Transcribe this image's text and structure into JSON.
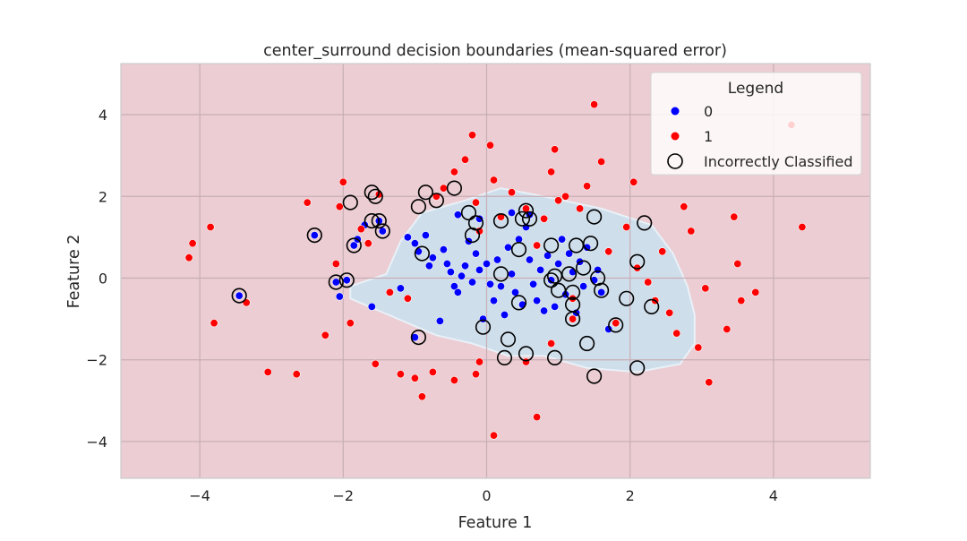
{
  "chart_data": {
    "type": "scatter",
    "title": "center_surround decision boundaries (mean-squared error)",
    "xlabel": "Feature 1",
    "ylabel": "Feature 2",
    "xlim": [
      -5.1,
      5.35
    ],
    "ylim": [
      -4.9,
      5.25
    ],
    "xticks": [
      -4,
      -2,
      0,
      2,
      4
    ],
    "yticks": [
      -4,
      -2,
      0,
      2,
      4
    ],
    "xtick_labels": [
      "−4",
      "−2",
      "0",
      "2",
      "4"
    ],
    "ytick_labels": [
      "−4",
      "−2",
      "0",
      "2",
      "4"
    ],
    "grid": true,
    "background": {
      "class_1_region_color": "#ebcdd3",
      "class_0_region_color": "#cfdeeb",
      "grid_color": "#c7aeb5"
    },
    "decision_region_class0": [
      [
        -1.9,
        -0.2
      ],
      [
        -1.4,
        0.1
      ],
      [
        -1.2,
        0.9
      ],
      [
        -0.9,
        1.6
      ],
      [
        -0.3,
        1.9
      ],
      [
        0.2,
        2.2
      ],
      [
        0.8,
        2.0
      ],
      [
        1.6,
        1.7
      ],
      [
        2.3,
        1.3
      ],
      [
        2.6,
        0.6
      ],
      [
        2.8,
        -0.2
      ],
      [
        2.9,
        -0.9
      ],
      [
        2.9,
        -1.6
      ],
      [
        2.7,
        -2.1
      ],
      [
        2.1,
        -2.3
      ],
      [
        1.4,
        -2.2
      ],
      [
        0.8,
        -1.9
      ],
      [
        0.3,
        -1.9
      ],
      [
        -0.2,
        -1.6
      ],
      [
        -0.7,
        -1.4
      ],
      [
        -1.1,
        -1.1
      ],
      [
        -1.5,
        -0.8
      ],
      [
        -1.9,
        -0.5
      ]
    ],
    "legend": {
      "title": "Legend",
      "position": "top-right",
      "entries": [
        "0",
        "1",
        "Incorrectly Classified"
      ]
    },
    "colors": {
      "0": "#0000ff",
      "1": "#ff0000",
      "misclassified_ring": "#000000"
    },
    "series": [
      {
        "name": "0",
        "points": [
          [
            -3.45,
            -0.43
          ],
          [
            -2.4,
            1.05
          ],
          [
            -2.1,
            -0.1
          ],
          [
            -2.05,
            -0.45
          ],
          [
            -1.95,
            -0.05
          ],
          [
            -1.85,
            0.8
          ],
          [
            -1.8,
            0.95
          ],
          [
            -1.6,
            -0.7
          ],
          [
            -1.5,
            1.4
          ],
          [
            -1.45,
            1.15
          ],
          [
            -1.2,
            -0.25
          ],
          [
            -1.0,
            -1.45
          ],
          [
            -1.0,
            0.85
          ],
          [
            -0.95,
            0.65
          ],
          [
            -0.85,
            1.05
          ],
          [
            -0.8,
            0.3
          ],
          [
            -0.75,
            0.5
          ],
          [
            -0.65,
            -1.05
          ],
          [
            -0.6,
            0.7
          ],
          [
            -0.55,
            0.35
          ],
          [
            -0.5,
            0.15
          ],
          [
            -0.45,
            -0.2
          ],
          [
            -0.4,
            -0.35
          ],
          [
            -0.35,
            0.05
          ],
          [
            -0.3,
            0.3
          ],
          [
            -0.25,
            0.9
          ],
          [
            -0.2,
            -0.1
          ],
          [
            -0.15,
            0.6
          ],
          [
            -0.1,
            0.2
          ],
          [
            -0.05,
            -1.0
          ],
          [
            0.0,
            0.35
          ],
          [
            0.05,
            -0.15
          ],
          [
            0.1,
            -0.55
          ],
          [
            0.15,
            0.45
          ],
          [
            0.2,
            -0.2
          ],
          [
            0.25,
            -0.9
          ],
          [
            0.3,
            0.75
          ],
          [
            0.35,
            0.1
          ],
          [
            0.4,
            -0.35
          ],
          [
            0.45,
            0.95
          ],
          [
            0.5,
            -0.65
          ],
          [
            0.55,
            1.25
          ],
          [
            0.6,
            0.45
          ],
          [
            0.65,
            -0.15
          ],
          [
            0.7,
            -0.55
          ],
          [
            0.75,
            0.2
          ],
          [
            0.8,
            -0.8
          ],
          [
            0.85,
            0.55
          ],
          [
            0.9,
            -0.05
          ],
          [
            0.95,
            -0.7
          ],
          [
            1.0,
            0.35
          ],
          [
            1.05,
            0.95
          ],
          [
            1.1,
            -0.4
          ],
          [
            1.15,
            0.6
          ],
          [
            1.2,
            0.15
          ],
          [
            1.25,
            -0.85
          ],
          [
            1.3,
            0.4
          ],
          [
            1.35,
            -0.2
          ],
          [
            1.4,
            0.75
          ],
          [
            1.5,
            -0.05
          ],
          [
            1.55,
            0.2
          ],
          [
            1.6,
            -0.35
          ],
          [
            1.7,
            -1.25
          ],
          [
            -0.4,
            1.55
          ],
          [
            -0.1,
            1.45
          ],
          [
            0.35,
            1.6
          ],
          [
            0.6,
            1.55
          ],
          [
            -1.1,
            1.0
          ],
          [
            -1.7,
            1.3
          ]
        ]
      },
      {
        "name": "1",
        "points": [
          [
            -4.15,
            0.5
          ],
          [
            -4.1,
            0.85
          ],
          [
            -3.85,
            1.25
          ],
          [
            -3.8,
            -1.1
          ],
          [
            -3.35,
            -0.6
          ],
          [
            -3.05,
            -2.3
          ],
          [
            -2.65,
            -2.35
          ],
          [
            -2.5,
            1.85
          ],
          [
            -2.25,
            -1.4
          ],
          [
            -2.1,
            0.35
          ],
          [
            -2.05,
            1.75
          ],
          [
            -2.0,
            2.35
          ],
          [
            -1.9,
            -1.1
          ],
          [
            -1.75,
            1.2
          ],
          [
            -1.65,
            0.85
          ],
          [
            -1.55,
            -2.1
          ],
          [
            -1.5,
            2.05
          ],
          [
            -1.35,
            -0.35
          ],
          [
            -1.2,
            -2.35
          ],
          [
            -1.1,
            -0.5
          ],
          [
            -1.0,
            -2.45
          ],
          [
            -0.9,
            -2.9
          ],
          [
            -0.75,
            -2.3
          ],
          [
            -0.7,
            2.0
          ],
          [
            -0.6,
            2.2
          ],
          [
            -0.45,
            2.6
          ],
          [
            -0.3,
            2.9
          ],
          [
            -0.2,
            3.5
          ],
          [
            -0.15,
            1.85
          ],
          [
            -0.1,
            1.15
          ],
          [
            0.1,
            2.4
          ],
          [
            0.2,
            1.5
          ],
          [
            0.35,
            2.1
          ],
          [
            0.55,
            1.7
          ],
          [
            0.7,
            0.8
          ],
          [
            0.8,
            1.45
          ],
          [
            0.9,
            2.6
          ],
          [
            0.95,
            3.15
          ],
          [
            1.0,
            1.9
          ],
          [
            1.1,
            2.0
          ],
          [
            1.2,
            -0.5
          ],
          [
            1.3,
            1.7
          ],
          [
            1.4,
            2.25
          ],
          [
            1.5,
            4.25
          ],
          [
            1.6,
            2.85
          ],
          [
            1.7,
            0.65
          ],
          [
            1.8,
            -1.1
          ],
          [
            1.95,
            1.25
          ],
          [
            2.05,
            2.35
          ],
          [
            2.1,
            0.25
          ],
          [
            2.25,
            -0.1
          ],
          [
            2.35,
            -0.55
          ],
          [
            2.45,
            0.65
          ],
          [
            2.55,
            -0.85
          ],
          [
            2.65,
            -1.35
          ],
          [
            2.75,
            1.75
          ],
          [
            2.85,
            1.15
          ],
          [
            2.95,
            -1.7
          ],
          [
            3.05,
            -0.25
          ],
          [
            3.1,
            -2.55
          ],
          [
            3.35,
            -1.25
          ],
          [
            3.45,
            1.5
          ],
          [
            3.5,
            0.35
          ],
          [
            3.55,
            -0.55
          ],
          [
            3.75,
            -0.35
          ],
          [
            4.25,
            3.75
          ],
          [
            4.4,
            1.25
          ],
          [
            0.05,
            3.25
          ],
          [
            0.1,
            -3.85
          ],
          [
            -0.15,
            -2.35
          ],
          [
            0.7,
            -3.4
          ],
          [
            0.55,
            -2.05
          ],
          [
            -0.1,
            -2.05
          ],
          [
            -0.45,
            -2.5
          ],
          [
            0.9,
            -1.6
          ],
          [
            1.2,
            -1.0
          ]
        ]
      }
    ],
    "misclassified": [
      [
        -3.45,
        -0.43
      ],
      [
        -2.4,
        1.05
      ],
      [
        -2.1,
        -0.1
      ],
      [
        -1.95,
        -0.05
      ],
      [
        -1.9,
        1.85
      ],
      [
        -1.85,
        0.8
      ],
      [
        -1.6,
        2.1
      ],
      [
        -1.55,
        2.0
      ],
      [
        -1.6,
        1.4
      ],
      [
        -1.5,
        1.4
      ],
      [
        -1.45,
        1.15
      ],
      [
        -0.95,
        -1.45
      ],
      [
        -0.95,
        1.75
      ],
      [
        -0.9,
        0.6
      ],
      [
        -0.85,
        2.1
      ],
      [
        -0.7,
        1.9
      ],
      [
        -0.45,
        2.2
      ],
      [
        -0.25,
        1.6
      ],
      [
        -0.2,
        1.05
      ],
      [
        -0.15,
        1.35
      ],
      [
        -0.05,
        -1.2
      ],
      [
        0.2,
        1.4
      ],
      [
        0.2,
        0.1
      ],
      [
        0.25,
        -1.95
      ],
      [
        0.3,
        -1.5
      ],
      [
        0.45,
        -0.6
      ],
      [
        0.45,
        0.7
      ],
      [
        0.5,
        1.45
      ],
      [
        0.55,
        1.65
      ],
      [
        0.55,
        -1.85
      ],
      [
        0.6,
        1.45
      ],
      [
        0.9,
        0.8
      ],
      [
        0.9,
        -0.05
      ],
      [
        0.95,
        0.05
      ],
      [
        0.95,
        -1.95
      ],
      [
        1.0,
        -0.3
      ],
      [
        1.15,
        0.1
      ],
      [
        1.2,
        -0.35
      ],
      [
        1.2,
        -1.0
      ],
      [
        1.2,
        -0.65
      ],
      [
        1.25,
        0.8
      ],
      [
        1.35,
        0.25
      ],
      [
        1.4,
        -1.6
      ],
      [
        1.45,
        0.85
      ],
      [
        1.5,
        -2.4
      ],
      [
        1.5,
        1.5
      ],
      [
        1.55,
        0.0
      ],
      [
        1.6,
        -0.3
      ],
      [
        1.8,
        -1.15
      ],
      [
        1.95,
        -0.5
      ],
      [
        2.1,
        -2.2
      ],
      [
        2.1,
        0.4
      ],
      [
        2.2,
        1.35
      ],
      [
        2.3,
        -0.7
      ]
    ]
  }
}
